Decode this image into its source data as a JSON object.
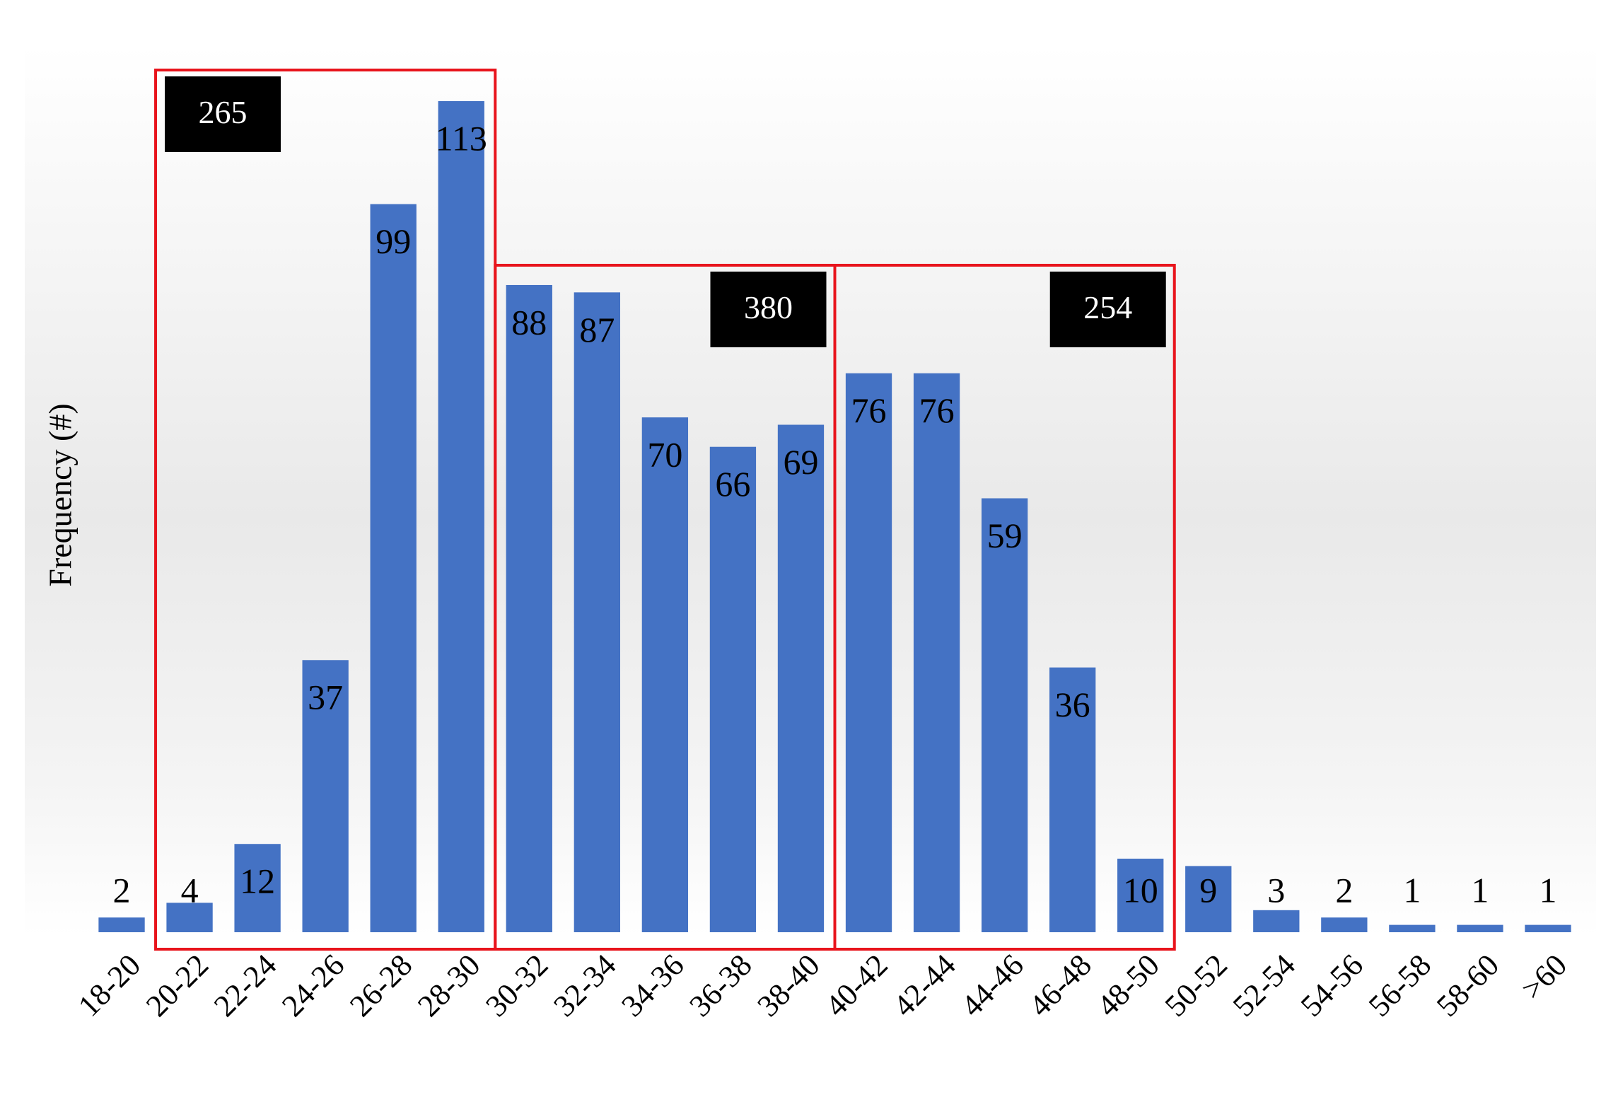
{
  "chart_data": {
    "type": "bar",
    "y_label": "Frequency (#)",
    "categories": [
      "18-20",
      "20-22",
      "22-24",
      "24-26",
      "26-28",
      "28-30",
      "30-32",
      "32-34",
      "34-36",
      "36-38",
      "38-40",
      "40-42",
      "42-44",
      "44-46",
      "46-48",
      "48-50",
      "50-52",
      "52-54",
      "54-56",
      "56-58",
      "58-60",
      ">60"
    ],
    "values": [
      2,
      4,
      12,
      37,
      99,
      113,
      88,
      87,
      70,
      66,
      69,
      76,
      76,
      59,
      36,
      10,
      9,
      3,
      2,
      1,
      1,
      1
    ],
    "color": "#4472c4",
    "annotations": [
      "265",
      "380",
      "254"
    ],
    "annotation_color": "#e8141c"
  }
}
